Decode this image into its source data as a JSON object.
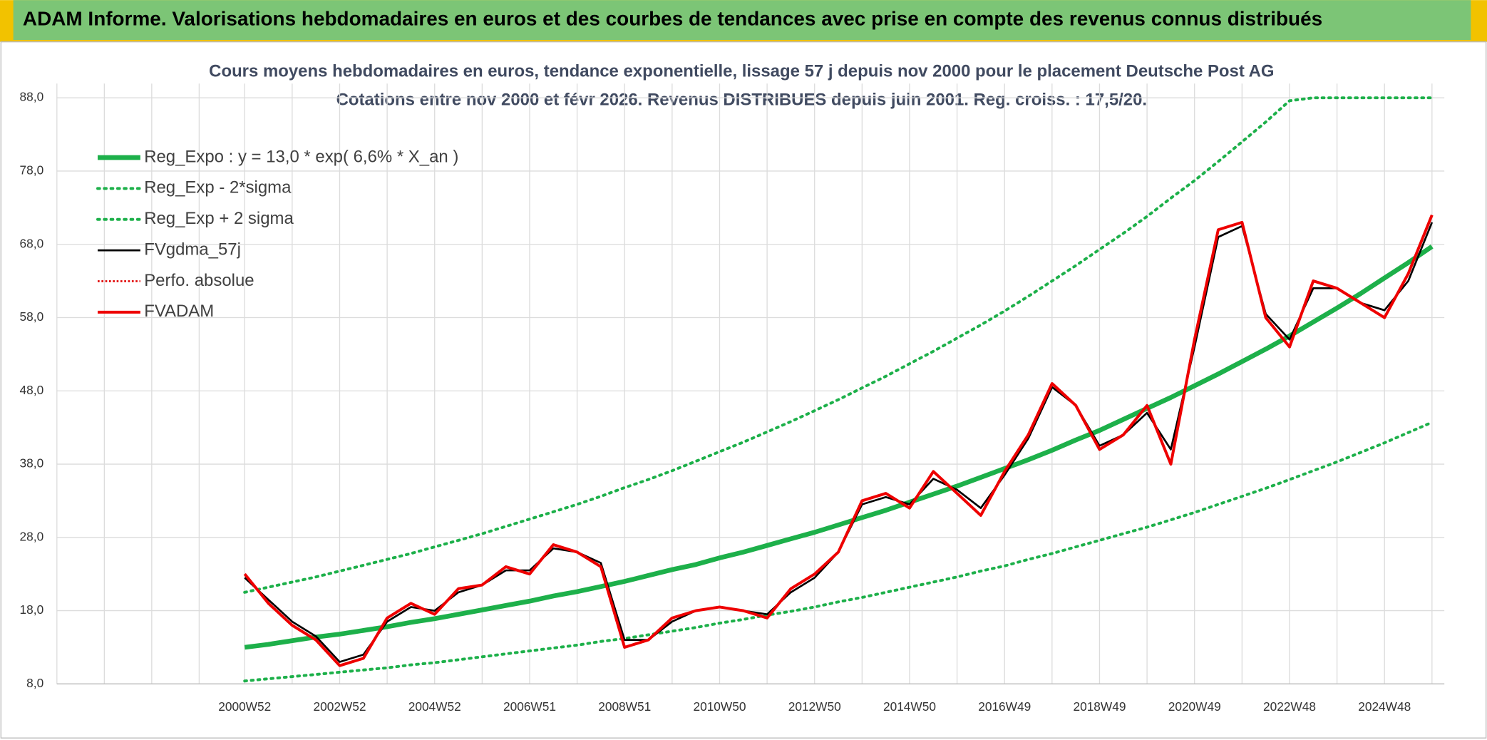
{
  "banner": "ADAM Informe. Valorisations hebdomadaires en euros et des courbes de tendances avec prise en compte des revenus connus distribués",
  "chart_data": {
    "type": "line",
    "title": "Cours moyens hebdomadaires en euros, tendance exponentielle, lissage 57 j depuis nov 2000 pour le placement Deutsche Post AG",
    "subtitle": "Cotations entre nov 2000 et févr 2026. Revenus DISTRIBUES depuis juin 2001. Reg. croiss. : 17,5/20.",
    "categories": [
      "2000W52",
      null,
      null,
      null,
      "2002W52",
      null,
      null,
      null,
      "2004W52",
      null,
      null,
      null,
      "2006W51",
      null,
      null,
      null,
      "2008W51",
      null,
      null,
      null,
      "2010W50",
      null,
      null,
      null,
      "2012W50",
      null,
      null,
      null,
      "2014W50",
      null,
      null,
      null,
      "2016W49",
      null,
      null,
      null,
      "2018W49",
      null,
      null,
      null,
      "2020W49",
      null,
      null,
      null,
      "2022W48",
      null,
      null,
      null,
      "2024W48",
      null,
      null
    ],
    "ylim": [
      8,
      88
    ],
    "yticks": [
      {
        "value": 8,
        "label": "8,0"
      },
      {
        "value": 18,
        "label": "18,0"
      },
      {
        "value": 28,
        "label": "28,0"
      },
      {
        "value": 38,
        "label": "38,0"
      },
      {
        "value": 48,
        "label": "48,0"
      },
      {
        "value": 58,
        "label": "58,0"
      },
      {
        "value": 68,
        "label": "68,0"
      },
      {
        "value": 78,
        "label": "78,0"
      },
      {
        "value": 88,
        "label": "88,0"
      }
    ],
    "grid": true,
    "legend": "top-left",
    "series": [
      {
        "name": "Reg_Expo : y = 13,0 * exp( 6,6% *  X_an )",
        "color": "#1db04a",
        "style": "solid",
        "width": 5,
        "values": [
          13.0,
          13.4,
          13.9,
          14.4,
          14.8,
          15.3,
          15.8,
          16.4,
          16.9,
          17.5,
          18.1,
          18.7,
          19.3,
          20.0,
          20.6,
          21.3,
          22.0,
          22.8,
          23.6,
          24.3,
          25.2,
          26.0,
          26.9,
          27.8,
          28.7,
          29.7,
          30.7,
          31.7,
          32.8,
          33.9,
          35.0,
          36.2,
          37.4,
          38.6,
          39.9,
          41.3,
          42.6,
          44.1,
          45.6,
          47.1,
          48.7,
          50.3,
          52.0,
          53.7,
          55.5,
          57.4,
          59.3,
          61.3,
          63.4,
          65.5,
          67.7
        ]
      },
      {
        "name": "Reg_Exp - 2*sigma",
        "color": "#1db04a",
        "style": "dotted",
        "width": 3,
        "values": [
          8.4,
          8.7,
          9.0,
          9.3,
          9.6,
          9.9,
          10.2,
          10.6,
          10.9,
          11.3,
          11.7,
          12.1,
          12.5,
          12.9,
          13.3,
          13.8,
          14.2,
          14.7,
          15.2,
          15.7,
          16.3,
          16.8,
          17.4,
          17.9,
          18.5,
          19.2,
          19.8,
          20.5,
          21.2,
          21.9,
          22.6,
          23.4,
          24.1,
          25.0,
          25.8,
          26.7,
          27.6,
          28.5,
          29.4,
          30.4,
          31.4,
          32.5,
          33.6,
          34.7,
          35.9,
          37.1,
          38.3,
          39.6,
          40.9,
          42.3,
          43.7
        ]
      },
      {
        "name": "Reg_Exp + 2 sigma",
        "color": "#1db04a",
        "style": "dotted",
        "width": 3,
        "values": [
          20.5,
          21.2,
          21.9,
          22.6,
          23.4,
          24.2,
          25.0,
          25.8,
          26.7,
          27.6,
          28.5,
          29.5,
          30.5,
          31.5,
          32.5,
          33.6,
          34.8,
          35.9,
          37.1,
          38.4,
          39.7,
          41.0,
          42.4,
          43.8,
          45.3,
          46.8,
          48.4,
          50.0,
          51.7,
          53.4,
          55.2,
          57.0,
          58.9,
          60.9,
          63.0,
          65.1,
          67.3,
          69.5,
          71.8,
          74.3,
          76.7,
          79.3,
          82.0,
          84.7,
          87.6,
          88,
          88,
          88,
          88,
          88,
          88
        ]
      },
      {
        "name": "FVgdma_57j",
        "color": "#000000",
        "style": "solid",
        "width": 2,
        "values": [
          22.5,
          19.5,
          16.5,
          14.5,
          11,
          12,
          16.5,
          18.5,
          18,
          20.5,
          21.5,
          23.5,
          23.5,
          26.5,
          26,
          24.5,
          14,
          14,
          16.5,
          18,
          18.5,
          18,
          17.5,
          20.5,
          22.5,
          26,
          32.5,
          33.5,
          32.5,
          36,
          34.5,
          32,
          36.5,
          41.5,
          48.5,
          46,
          40.5,
          42,
          45,
          40,
          54,
          69,
          70.5,
          58.5,
          55,
          62,
          62,
          60,
          59,
          63,
          71
        ]
      },
      {
        "name": "Perfo. absolue",
        "color": "#e00000",
        "style": "fine-dotted",
        "width": 2,
        "values": [
          null,
          null,
          null,
          null,
          null,
          null,
          null,
          null,
          null,
          null,
          null,
          null,
          null,
          null,
          null,
          null,
          null,
          null,
          null,
          null,
          null,
          null,
          null,
          null,
          null,
          null,
          null,
          null,
          null,
          null,
          null,
          null,
          null,
          null,
          null,
          null,
          null,
          null,
          null,
          null,
          null,
          null,
          null,
          null,
          null,
          null,
          null,
          null,
          null,
          null,
          null
        ]
      },
      {
        "name": "FVADAM",
        "color": "#ee0000",
        "style": "solid",
        "width": 3,
        "values": [
          23,
          19,
          16,
          14,
          10.5,
          11.5,
          17,
          19,
          17.5,
          21,
          21.5,
          24,
          23,
          27,
          26,
          24,
          13,
          14,
          17,
          18,
          18.5,
          18,
          17,
          21,
          23,
          26,
          33,
          34,
          32,
          37,
          34,
          31,
          37,
          42,
          49,
          46,
          40,
          42,
          46,
          38,
          55,
          70,
          71,
          58,
          54,
          63,
          62,
          60,
          58,
          64,
          72
        ]
      }
    ]
  }
}
